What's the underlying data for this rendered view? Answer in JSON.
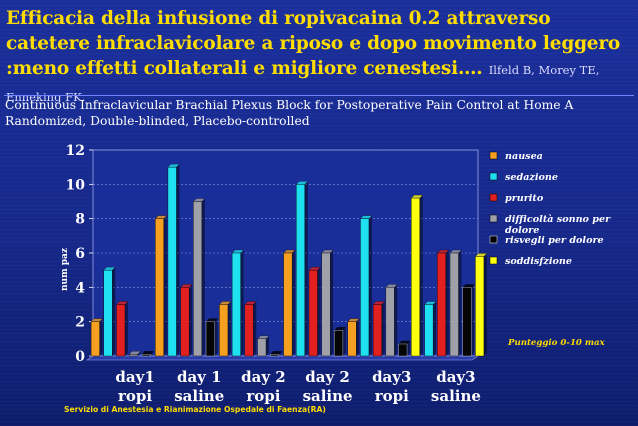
{
  "slide": {
    "title": "Efficacia della infusione di ropivacaina 0.2 attraverso catetere infraclavicolare a riposo e dopo movimento leggero :meno effetti collaterali e migliore cenestesi….",
    "citation": "Ilfeld B, Morey TE, Enneking FK.",
    "subtitle_line1": "Continuous Infraclavicular Brachial Plexus Block for Postoperative Pain Control at Home A",
    "subtitle_line2": "Randomized, Double-blinded, Placebo-controlled",
    "footer": "Servizio di Anestesia e Rianimazione Ospedale di Faenza(RA)",
    "colors": {
      "background": "#1b2f9c",
      "title": "#ffdd00",
      "plot_area": "#1a2e9a"
    }
  },
  "chart_data": {
    "type": "bar",
    "title": "",
    "ylabel": "num paz",
    "xlabel": "",
    "ylim": [
      0,
      12
    ],
    "yticks": [
      "0",
      "2",
      "4",
      "6",
      "8",
      "10",
      "12"
    ],
    "grid": true,
    "legend_position": "right",
    "categories": [
      [
        "day1",
        "ropi"
      ],
      [
        "day 1",
        "saline"
      ],
      [
        "day 2",
        "ropi"
      ],
      [
        "day 2",
        "saline"
      ],
      [
        "day3",
        "ropi"
      ],
      [
        "day3",
        "saline"
      ]
    ],
    "series": [
      {
        "name": "nausea",
        "color": "#f5a020",
        "values": [
          2,
          8,
          3,
          6,
          2,
          0
        ]
      },
      {
        "name": "sedazione",
        "color": "#1fe0f0",
        "values": [
          5,
          11,
          6,
          10,
          8,
          3
        ]
      },
      {
        "name": "prurito",
        "color": "#e22020",
        "values": [
          3,
          4,
          3,
          5,
          3,
          6
        ]
      },
      {
        "name": "difficoltà sonno per dolore",
        "color": "#a0a0a8",
        "values": [
          0.1,
          9,
          1,
          6,
          4,
          6
        ]
      },
      {
        "name": "risvegli per dolore",
        "color": "#000000",
        "values": [
          0.1,
          2,
          0.1,
          1.5,
          0.7,
          4
        ]
      },
      {
        "name": "soddisfzione",
        "color": "#ffff10",
        "values": [
          0,
          0,
          0,
          0,
          9.2,
          5.8
        ]
      }
    ],
    "annotation": "Punteggio 0-10 max"
  }
}
